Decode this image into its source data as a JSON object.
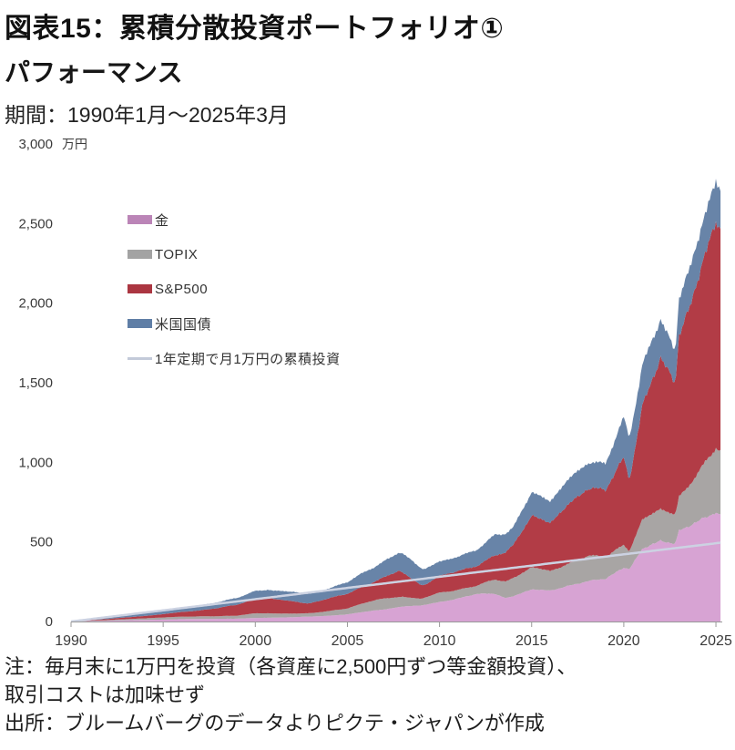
{
  "header": {
    "title": "図表15：累積分散投資ポートフォリオ①",
    "subtitle": "パフォーマンス",
    "period": "期間：1990年1月～2025年3月"
  },
  "footer": {
    "note_line1": "注：毎月末に1万円を投資（各資産に2,500円ずつ等金額投資）、",
    "note_line2": "取引コストは加味せず",
    "source": "出所：ブルームバーグのデータよりピクテ・ジャパンが作成"
  },
  "chart_data": {
    "type": "area",
    "stacked": true,
    "title": "パフォーマンス",
    "xlabel": "",
    "ylabel": "万円",
    "y_unit_label": "万円",
    "x_range": [
      1990,
      2025.25
    ],
    "y_range": [
      0,
      3000
    ],
    "x_ticks": [
      1990,
      1995,
      2000,
      2005,
      2010,
      2015,
      2020,
      2025
    ],
    "y_ticks": [
      0,
      500,
      1000,
      1500,
      2000,
      2500,
      3000
    ],
    "grid": false,
    "legend_position": "upper-left-inside",
    "series": [
      {
        "key": "gold",
        "label": "金",
        "render": "area",
        "color": "#d7a3d3",
        "legend_color": "#bb85b7",
        "noise_amp": 0.02,
        "seed": 1,
        "points": [
          [
            1990,
            0
          ],
          [
            1991,
            3
          ],
          [
            1992,
            5
          ],
          [
            1993,
            8
          ],
          [
            1994,
            10
          ],
          [
            1995,
            12
          ],
          [
            1996,
            15
          ],
          [
            1997,
            16
          ],
          [
            1998,
            17
          ],
          [
            1999,
            18
          ],
          [
            2000,
            22
          ],
          [
            2001,
            24
          ],
          [
            2002,
            27
          ],
          [
            2003,
            31
          ],
          [
            2004,
            36
          ],
          [
            2005,
            45
          ],
          [
            2006,
            62
          ],
          [
            2007,
            76
          ],
          [
            2008,
            95
          ],
          [
            2009,
            100
          ],
          [
            2010,
            122
          ],
          [
            2011,
            145
          ],
          [
            2012,
            172
          ],
          [
            2013,
            175
          ],
          [
            2013.6,
            148
          ],
          [
            2014,
            160
          ],
          [
            2015,
            200
          ],
          [
            2016,
            195
          ],
          [
            2017,
            225
          ],
          [
            2018,
            250
          ],
          [
            2019,
            270
          ],
          [
            2020,
            340
          ],
          [
            2020.3,
            330
          ],
          [
            2021,
            450
          ],
          [
            2022,
            510
          ],
          [
            2022.8,
            490
          ],
          [
            2023,
            575
          ],
          [
            2024,
            620
          ],
          [
            2025,
            690
          ],
          [
            2025.25,
            667
          ]
        ]
      },
      {
        "key": "topix",
        "label": "TOPIX",
        "render": "area",
        "color": "#a8a5a4",
        "legend_color": "#a3a3a3",
        "noise_amp": 0.05,
        "seed": 2,
        "points": [
          [
            1990,
            0
          ],
          [
            1991,
            2
          ],
          [
            1992,
            4
          ],
          [
            1993,
            7
          ],
          [
            1994,
            10
          ],
          [
            1995,
            13
          ],
          [
            1996,
            16
          ],
          [
            1997,
            16
          ],
          [
            1998,
            16
          ],
          [
            1999,
            19
          ],
          [
            2000,
            30
          ],
          [
            2001,
            26
          ],
          [
            2002,
            23
          ],
          [
            2003,
            21
          ],
          [
            2004,
            29
          ],
          [
            2005,
            38
          ],
          [
            2006,
            58
          ],
          [
            2007,
            68
          ],
          [
            2008,
            62
          ],
          [
            2009,
            42
          ],
          [
            2010,
            58
          ],
          [
            2011,
            55
          ],
          [
            2012,
            52
          ],
          [
            2013,
            88
          ],
          [
            2014,
            115
          ],
          [
            2015,
            140
          ],
          [
            2016,
            120
          ],
          [
            2017,
            140
          ],
          [
            2018,
            160
          ],
          [
            2019,
            135
          ],
          [
            2020,
            145
          ],
          [
            2020.3,
            115
          ],
          [
            2021,
            185
          ],
          [
            2022,
            195
          ],
          [
            2022.8,
            185
          ],
          [
            2023,
            215
          ],
          [
            2024,
            300
          ],
          [
            2025,
            400
          ],
          [
            2025.25,
            403
          ]
        ]
      },
      {
        "key": "sp500",
        "label": "S&P500",
        "render": "area",
        "color": "#b23c46",
        "legend_color": "#ab3641",
        "noise_amp": 0.035,
        "seed": 3,
        "points": [
          [
            1990,
            0
          ],
          [
            1991,
            3
          ],
          [
            1992,
            7
          ],
          [
            1993,
            11
          ],
          [
            1994,
            15
          ],
          [
            1995,
            21
          ],
          [
            1996,
            29
          ],
          [
            1997,
            38
          ],
          [
            1998,
            52
          ],
          [
            1999,
            68
          ],
          [
            2000,
            92
          ],
          [
            2000.7,
            100
          ],
          [
            2001,
            90
          ],
          [
            2002,
            78
          ],
          [
            2002.8,
            62
          ],
          [
            2003,
            64
          ],
          [
            2004,
            80
          ],
          [
            2005,
            92
          ],
          [
            2006,
            108
          ],
          [
            2007,
            132
          ],
          [
            2007.8,
            165
          ],
          [
            2008,
            150
          ],
          [
            2009,
            88
          ],
          [
            2009.2,
            80
          ],
          [
            2010,
            105
          ],
          [
            2011,
            118
          ],
          [
            2012,
            125
          ],
          [
            2013,
            150
          ],
          [
            2014,
            205
          ],
          [
            2015,
            330
          ],
          [
            2016,
            300
          ],
          [
            2017,
            370
          ],
          [
            2018,
            430
          ],
          [
            2019,
            420
          ],
          [
            2020,
            540
          ],
          [
            2020.3,
            445
          ],
          [
            2021,
            720
          ],
          [
            2022,
            950
          ],
          [
            2022.8,
            810
          ],
          [
            2023,
            1000
          ],
          [
            2024,
            1230
          ],
          [
            2025,
            1430
          ],
          [
            2025.25,
            1380
          ]
        ]
      },
      {
        "key": "ust",
        "label": "米国国債",
        "render": "area",
        "color": "#6884a8",
        "legend_color": "#5f7ea6",
        "noise_amp": 0.06,
        "seed": 4,
        "points": [
          [
            1990,
            0
          ],
          [
            1991,
            4
          ],
          [
            1992,
            8
          ],
          [
            1993,
            12
          ],
          [
            1994,
            16
          ],
          [
            1995,
            19
          ],
          [
            1996,
            25
          ],
          [
            1997,
            31
          ],
          [
            1998,
            38
          ],
          [
            1999,
            42
          ],
          [
            2000,
            48
          ],
          [
            2001,
            53
          ],
          [
            2002,
            59
          ],
          [
            2003,
            60
          ],
          [
            2004,
            63
          ],
          [
            2005,
            72
          ],
          [
            2006,
            88
          ],
          [
            2007,
            102
          ],
          [
            2007.8,
            115
          ],
          [
            2008,
            118
          ],
          [
            2009,
            105
          ],
          [
            2010,
            92
          ],
          [
            2011,
            88
          ],
          [
            2012,
            100
          ],
          [
            2013,
            132
          ],
          [
            2014,
            108
          ],
          [
            2015,
            148
          ],
          [
            2016,
            140
          ],
          [
            2017,
            155
          ],
          [
            2018,
            160
          ],
          [
            2019,
            170
          ],
          [
            2020,
            245
          ],
          [
            2020.3,
            255
          ],
          [
            2021,
            255
          ],
          [
            2022,
            250
          ],
          [
            2022.8,
            195
          ],
          [
            2023,
            230
          ],
          [
            2024,
            245
          ],
          [
            2025,
            265
          ],
          [
            2025.25,
            250
          ]
        ]
      },
      {
        "key": "deposit",
        "label": "1年定期で月1万円の累積投資",
        "render": "line",
        "color": "#ccd2e2",
        "legend_color": "#c3cad9",
        "noise_amp": 0,
        "seed": 5,
        "points": [
          [
            1990,
            0
          ],
          [
            1995,
            70
          ],
          [
            2000,
            140
          ],
          [
            2005,
            211
          ],
          [
            2010,
            281
          ],
          [
            2015,
            351
          ],
          [
            2020,
            422
          ],
          [
            2025.25,
            495
          ]
        ]
      }
    ]
  }
}
